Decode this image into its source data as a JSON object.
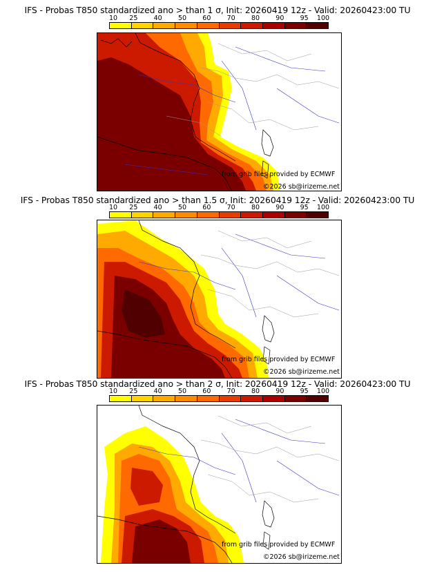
{
  "panels": [
    {
      "title": "IFS - Probas T850  standardized ano > than 1 σ, Init: 20260419 12z - Valid: 20260423:00 TU"
    },
    {
      "title": "IFS - Probas T850  standardized ano > than 1.5 σ, Init: 20260419 12z - Valid: 20260423:00 TU"
    },
    {
      "title": "IFS - Probas T850  standardized ano > than 2 σ, Init: 20260419 12z - Valid: 20260423:00 TU"
    }
  ],
  "legend": {
    "ticks": [
      "10",
      "25",
      "40",
      "50",
      "60",
      "70",
      "80",
      "90",
      "95",
      "100"
    ],
    "colors": [
      "#ffff00",
      "#ffd400",
      "#ffaa00",
      "#ff8c00",
      "#ff6a00",
      "#e63c00",
      "#cc1a00",
      "#aa0000",
      "#7a0000",
      "#500000"
    ]
  },
  "credits": {
    "source": "from grib files provided by ECMWF",
    "copyright": "©2026 sb@irizeme.net"
  }
}
